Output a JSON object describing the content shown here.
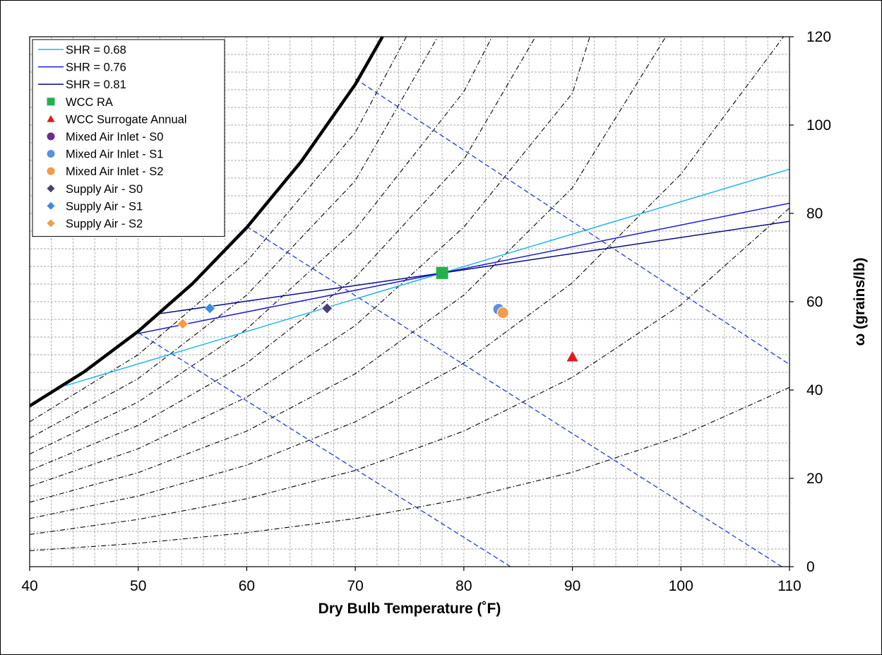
{
  "chart_data": {
    "type": "scatter",
    "title": "",
    "xlabel": "Dry Bulb Temperature (˚F)",
    "ylabel": "ω (grains/lb)",
    "xlim": [
      40,
      110
    ],
    "ylim": [
      0,
      120
    ],
    "x_ticks": [
      40,
      50,
      60,
      70,
      80,
      90,
      100,
      110
    ],
    "y_ticks": [
      0,
      20,
      40,
      60,
      80,
      100,
      120
    ],
    "x_tick_labels": [
      "40",
      "50",
      "60",
      "70",
      "80",
      "90",
      "100",
      "110"
    ],
    "y_tick_labels": [
      "0",
      "20",
      "40",
      "60",
      "80",
      "100",
      "120"
    ],
    "y_axis_side": "right",
    "grid": true,
    "legend_position": "top-left",
    "saturation_curve": {
      "color": "#000000",
      "points": [
        [
          40,
          36.4
        ],
        [
          45,
          44.1
        ],
        [
          50,
          53.3
        ],
        [
          55,
          64.1
        ],
        [
          60,
          76.8
        ],
        [
          65,
          91.7
        ],
        [
          70,
          109.2
        ],
        [
          72.5,
          120
        ]
      ]
    },
    "rh_curves": {
      "color": "#000000",
      "style": "dash-dot",
      "points": [
        [
          [
            40,
            32.8
          ],
          [
            50,
            48
          ],
          [
            60,
            69.1
          ],
          [
            70,
            98.3
          ],
          [
            74.7,
            120
          ]
        ],
        [
          [
            40,
            29.1
          ],
          [
            50,
            42.6
          ],
          [
            60,
            61.5
          ],
          [
            70,
            87.4
          ],
          [
            77.6,
            120
          ]
        ],
        [
          [
            40,
            25.5
          ],
          [
            50,
            37.3
          ],
          [
            60,
            53.8
          ],
          [
            70,
            76.4
          ],
          [
            80,
            107.6
          ],
          [
            82.6,
            120
          ]
        ],
        [
          [
            40,
            21.8
          ],
          [
            50,
            32
          ],
          [
            60,
            46.1
          ],
          [
            70,
            65.5
          ],
          [
            80,
            92.2
          ],
          [
            86.6,
            120
          ]
        ],
        [
          [
            40,
            18.2
          ],
          [
            50,
            26.7
          ],
          [
            60,
            38.4
          ],
          [
            70,
            54.6
          ],
          [
            80,
            76.9
          ],
          [
            90,
            107.2
          ],
          [
            91.6,
            120
          ]
        ],
        [
          [
            40,
            14.6
          ],
          [
            50,
            21.3
          ],
          [
            60,
            30.7
          ],
          [
            70,
            43.7
          ],
          [
            80,
            61.5
          ],
          [
            90,
            85.8
          ],
          [
            98.6,
            120
          ]
        ],
        [
          [
            40,
            10.9
          ],
          [
            50,
            16
          ],
          [
            60,
            23
          ],
          [
            70,
            32.8
          ],
          [
            80,
            46.1
          ],
          [
            90,
            64.3
          ],
          [
            100,
            88.9
          ],
          [
            110,
            121.8
          ]
        ],
        [
          [
            40,
            7.3
          ],
          [
            50,
            10.7
          ],
          [
            60,
            15.4
          ],
          [
            70,
            21.8
          ],
          [
            80,
            30.7
          ],
          [
            90,
            42.9
          ],
          [
            100,
            59.3
          ],
          [
            110,
            81.2
          ]
        ],
        [
          [
            40,
            3.6
          ],
          [
            50,
            5.3
          ],
          [
            60,
            7.7
          ],
          [
            70,
            10.9
          ],
          [
            80,
            15.4
          ],
          [
            90,
            21.4
          ],
          [
            100,
            29.6
          ],
          [
            110,
            40.6
          ]
        ]
      ]
    },
    "enthalpy_lines": {
      "color": "#1f3fd6",
      "style": "dashed",
      "points": [
        [
          [
            50,
            53
          ],
          [
            84.3,
            0
          ]
        ],
        [
          [
            60,
            77
          ],
          [
            109.3,
            0
          ]
        ],
        [
          [
            70,
            110.5
          ],
          [
            110,
            45.8
          ]
        ]
      ]
    },
    "series": [
      {
        "name": "SHR = 0.68",
        "color": "#1fb6e6",
        "kind": "line",
        "points": [
          [
            43.3,
            41
          ],
          [
            78,
            66.5
          ],
          [
            110,
            90
          ]
        ]
      },
      {
        "name": "SHR = 0.76",
        "color": "#1a1ad6",
        "kind": "line",
        "points": [
          [
            50,
            52.8
          ],
          [
            78,
            66.5
          ],
          [
            110,
            82.3
          ]
        ]
      },
      {
        "name": "SHR = 0.81",
        "color": "#0b0b8a",
        "kind": "line",
        "points": [
          [
            52,
            57.3
          ],
          [
            78,
            66.5
          ],
          [
            110,
            78.2
          ]
        ]
      },
      {
        "name": "WCC RA",
        "color": "#22b14c",
        "kind": "marker",
        "marker": "square",
        "points": [
          [
            78,
            66.5
          ]
        ]
      },
      {
        "name": "WCC Surrogate Annual",
        "color": "#e11a1a",
        "kind": "marker",
        "marker": "triangle",
        "points": [
          [
            90,
            47.5
          ]
        ]
      },
      {
        "name": "Mixed Air Inlet - S0",
        "color": "#6a2c91",
        "kind": "marker",
        "marker": "circle",
        "points": []
      },
      {
        "name": "Mixed Air Inlet - S1",
        "color": "#5b8fe0",
        "kind": "marker",
        "marker": "circle",
        "points": [
          [
            83.2,
            58.3
          ]
        ]
      },
      {
        "name": "Mixed Air Inlet - S2",
        "color": "#f59a4a",
        "kind": "marker",
        "marker": "circle",
        "points": [
          [
            83.6,
            57.5
          ]
        ]
      },
      {
        "name": "Supply Air - S0",
        "color": "#4b4073",
        "kind": "marker",
        "marker": "diamond",
        "points": [
          [
            67.4,
            58.5
          ]
        ]
      },
      {
        "name": "Supply Air - S1",
        "color": "#3a8de0",
        "kind": "marker",
        "marker": "diamond",
        "points": [
          [
            56.6,
            58.5
          ]
        ]
      },
      {
        "name": "Supply Air - S2",
        "color": "#f59a4a",
        "kind": "marker",
        "marker": "diamond",
        "points": [
          [
            54.1,
            55
          ]
        ]
      }
    ]
  }
}
